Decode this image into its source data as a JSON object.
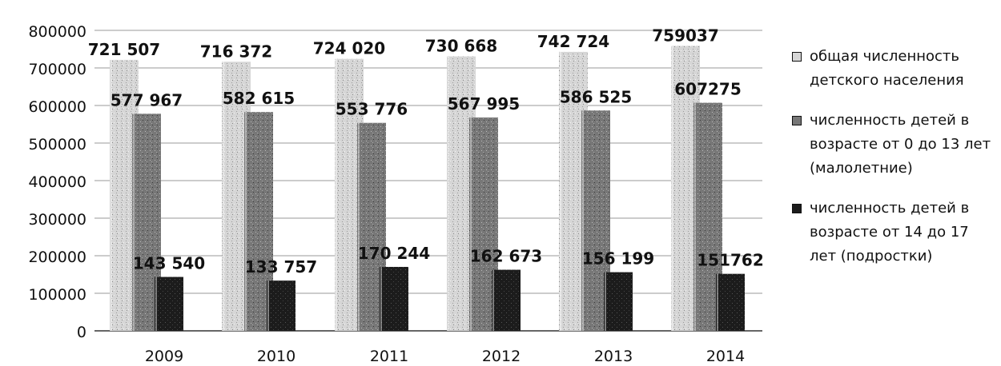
{
  "chart_data": {
    "type": "bar",
    "categories": [
      "2009",
      "2010",
      "2011",
      "2012",
      "2013",
      "2014"
    ],
    "ylim": [
      0,
      800000
    ],
    "yticks": [
      0,
      100000,
      200000,
      300000,
      400000,
      500000,
      600000,
      700000,
      800000
    ],
    "ytick_labels": [
      "0",
      "100000",
      "200000",
      "300000",
      "400000",
      "500000",
      "600000",
      "700000",
      "800000"
    ],
    "grid": true,
    "legend_position": "right",
    "series": [
      {
        "name": "общая численность детского населения",
        "values": [
          721507,
          716372,
          724020,
          730668,
          742724,
          759037
        ],
        "labels": [
          "721 507",
          "716 372",
          "724 020",
          "730 668",
          "742 724",
          "759037"
        ],
        "color": "#cfcfcf"
      },
      {
        "name": "численность детей в возрасте от 0 до 13 лет (малолетние)",
        "values": [
          577967,
          582615,
          553776,
          567995,
          586525,
          607275
        ],
        "labels": [
          "577 967",
          "582 615",
          "553 776",
          "567 995",
          "586 525",
          "607275"
        ],
        "color": "#7a7a7a"
      },
      {
        "name": "численность детей в возрасте  от 14 до 17 лет (подростки)",
        "values": [
          143540,
          133757,
          170244,
          162673,
          156199,
          151762
        ],
        "labels": [
          "143 540",
          "133 757",
          "170 244",
          "162 673",
          "156 199",
          "151762"
        ],
        "color": "#1a1a1a"
      }
    ]
  }
}
